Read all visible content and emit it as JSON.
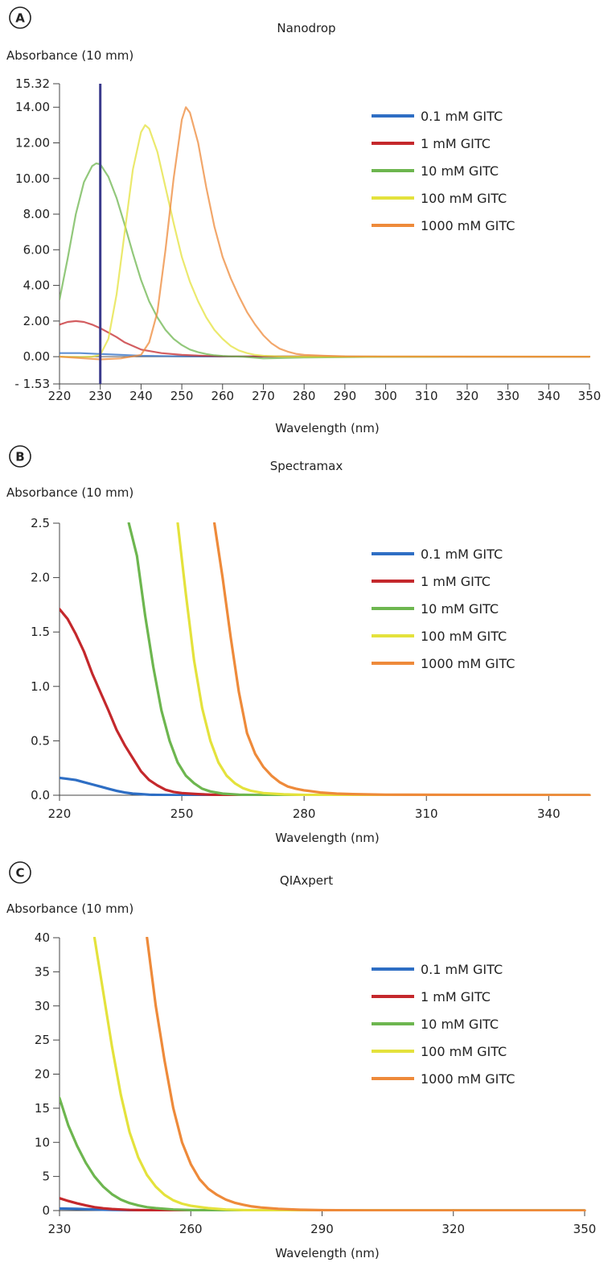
{
  "colors": {
    "0.1 mM GITC": "#2e6ec4",
    "1 mM GITC": "#c4282c",
    "10 mM GITC": "#6db64f",
    "100 mM GITC": "#e4e23c",
    "1000 mM GITC": "#ee8a3a",
    "marker": "#3b3b8c"
  },
  "chart_data": [
    {
      "panel": "A",
      "type": "line",
      "title": "Nanodrop",
      "ylabel": "Absorbance (10 mm)",
      "xlabel": "Wavelength (nm)",
      "xlim": [
        220,
        350
      ],
      "ylim": [
        -1.53,
        15.32
      ],
      "xticks": [
        "220",
        "230",
        "240",
        "250",
        "260",
        "270",
        "280",
        "290",
        "300",
        "310",
        "320",
        "330",
        "340",
        "350"
      ],
      "yticks": [
        "15.32",
        "14.00",
        "12.00",
        "10.00",
        "8.00",
        "6.00",
        "4.00",
        "2.00",
        "0.00",
        "- 1.53"
      ],
      "ytick_values": [
        15.32,
        14,
        12,
        10,
        8,
        6,
        4,
        2,
        0,
        -1.53
      ],
      "marker_line_x": 230,
      "legend": [
        "0.1 mM GITC",
        "1 mM GITC",
        "10 mM GITC",
        "100 mM GITC",
        "1000 mM GITC"
      ],
      "series": [
        {
          "name": "0.1 mM GITC",
          "x": [
            220,
            225,
            230,
            235,
            240,
            250,
            260,
            300,
            350
          ],
          "y": [
            0.2,
            0.2,
            0.15,
            0.1,
            0.05,
            0.02,
            0.01,
            0.0,
            0.0
          ]
        },
        {
          "name": "1 mM GITC",
          "x": [
            220,
            222,
            224,
            226,
            228,
            230,
            232,
            234,
            236,
            240,
            245,
            250,
            255,
            260,
            300,
            350
          ],
          "y": [
            1.8,
            1.95,
            2.0,
            1.95,
            1.8,
            1.6,
            1.35,
            1.1,
            0.8,
            0.4,
            0.2,
            0.1,
            0.05,
            0.02,
            0.0,
            0.0
          ]
        },
        {
          "name": "10 mM GITC",
          "x": [
            220,
            222,
            224,
            226,
            228,
            229,
            230,
            232,
            234,
            236,
            238,
            240,
            242,
            244,
            246,
            248,
            250,
            252,
            254,
            256,
            258,
            260,
            262,
            265,
            270,
            280,
            300,
            313
          ],
          "y": [
            3.2,
            5.5,
            8.0,
            9.8,
            10.7,
            10.85,
            10.8,
            10.1,
            8.9,
            7.4,
            5.8,
            4.3,
            3.1,
            2.2,
            1.5,
            1.0,
            0.65,
            0.4,
            0.25,
            0.15,
            0.08,
            0.04,
            0.02,
            0.0,
            -0.1,
            -0.05,
            0.0,
            0.0
          ]
        },
        {
          "name": "100 mM GITC",
          "x": [
            220,
            225,
            228,
            230,
            232,
            234,
            236,
            238,
            240,
            241,
            242,
            244,
            246,
            248,
            250,
            252,
            254,
            256,
            258,
            260,
            262,
            264,
            266,
            268,
            270,
            275,
            280,
            300,
            350
          ],
          "y": [
            0.0,
            -0.02,
            0.0,
            0.1,
            1.0,
            3.5,
            7.0,
            10.5,
            12.6,
            13.0,
            12.8,
            11.5,
            9.5,
            7.5,
            5.6,
            4.2,
            3.1,
            2.2,
            1.5,
            1.0,
            0.6,
            0.35,
            0.2,
            0.1,
            0.05,
            0.0,
            0.0,
            0.0,
            0.0
          ]
        },
        {
          "name": "1000 mM GITC",
          "x": [
            220,
            230,
            235,
            240,
            242,
            244,
            246,
            248,
            250,
            251,
            252,
            254,
            256,
            258,
            260,
            262,
            264,
            266,
            268,
            270,
            272,
            274,
            276,
            278,
            280,
            285,
            290,
            350
          ],
          "y": [
            0.0,
            -0.15,
            -0.1,
            0.1,
            0.8,
            2.5,
            6.0,
            10.0,
            13.3,
            14.0,
            13.7,
            12.0,
            9.5,
            7.3,
            5.6,
            4.4,
            3.4,
            2.5,
            1.8,
            1.2,
            0.75,
            0.45,
            0.28,
            0.16,
            0.1,
            0.05,
            0.02,
            0.0
          ]
        }
      ]
    },
    {
      "panel": "B",
      "type": "line",
      "title": "Spectramax",
      "ylabel": "Absorbance (10 mm)",
      "xlabel": "Wavelength (nm)",
      "xlim": [
        220,
        350
      ],
      "ylim": [
        0,
        2.5
      ],
      "xticks": [
        "220",
        "250",
        "280",
        "310",
        "340"
      ],
      "xtick_values": [
        220,
        250,
        280,
        310,
        340
      ],
      "yticks": [
        "2.5",
        "2.0",
        "1.5",
        "1.0",
        "0.5",
        "0.0"
      ],
      "ytick_values": [
        2.5,
        2.0,
        1.5,
        1.0,
        0.5,
        0.0
      ],
      "legend": [
        "0.1 mM GITC",
        "1 mM GITC",
        "10 mM GITC",
        "100 mM GITC",
        "1000 mM GITC"
      ],
      "series": [
        {
          "name": "0.1 mM GITC",
          "x": [
            220,
            222,
            224,
            226,
            228,
            230,
            232,
            234,
            236,
            238,
            240,
            242,
            244,
            246,
            250,
            260,
            350
          ],
          "y": [
            0.16,
            0.15,
            0.14,
            0.12,
            0.1,
            0.08,
            0.06,
            0.04,
            0.025,
            0.015,
            0.01,
            0.005,
            0.003,
            0.002,
            0.0,
            0.0,
            0.0
          ]
        },
        {
          "name": "1 mM GITC",
          "x": [
            220,
            222,
            224,
            226,
            228,
            230,
            232,
            234,
            236,
            238,
            240,
            242,
            244,
            246,
            248,
            250,
            254,
            260,
            270,
            350
          ],
          "y": [
            1.71,
            1.62,
            1.48,
            1.32,
            1.12,
            0.95,
            0.78,
            0.6,
            0.46,
            0.34,
            0.22,
            0.14,
            0.09,
            0.05,
            0.03,
            0.02,
            0.01,
            0.0,
            0.0,
            0.0
          ]
        },
        {
          "name": "10 mM GITC",
          "x": [
            237,
            239,
            241,
            243,
            245,
            247,
            249,
            251,
            253,
            255,
            257,
            260,
            264,
            270,
            350
          ],
          "y": [
            2.5,
            2.2,
            1.65,
            1.18,
            0.78,
            0.5,
            0.3,
            0.18,
            0.11,
            0.06,
            0.035,
            0.015,
            0.005,
            0.0,
            0.0
          ]
        },
        {
          "name": "100 mM GITC",
          "x": [
            249,
            251,
            253,
            255,
            257,
            259,
            261,
            263,
            265,
            267,
            270,
            275,
            280,
            350
          ],
          "y": [
            2.5,
            1.85,
            1.24,
            0.8,
            0.5,
            0.3,
            0.18,
            0.11,
            0.065,
            0.04,
            0.02,
            0.008,
            0.003,
            0.0
          ]
        },
        {
          "name": "1000 mM GITC",
          "x": [
            258,
            260,
            262,
            264,
            266,
            268,
            270,
            272,
            274,
            276,
            278,
            280,
            284,
            288,
            292,
            300,
            350
          ],
          "y": [
            2.5,
            2.0,
            1.45,
            0.95,
            0.57,
            0.38,
            0.26,
            0.18,
            0.12,
            0.08,
            0.06,
            0.045,
            0.025,
            0.015,
            0.01,
            0.005,
            0.0
          ]
        }
      ]
    },
    {
      "panel": "C",
      "type": "line",
      "title": "QIAxpert",
      "ylabel": "Absorbance (10 mm)",
      "xlabel": "Wavelength (nm)",
      "xlim": [
        230,
        350
      ],
      "ylim": [
        0,
        40
      ],
      "xticks": [
        "230",
        "260",
        "290",
        "320",
        "350"
      ],
      "xtick_values": [
        230,
        260,
        290,
        320,
        350
      ],
      "yticks": [
        "40",
        "35",
        "30",
        "25",
        "20",
        "15",
        "10",
        "5",
        "0"
      ],
      "ytick_values": [
        40,
        35,
        30,
        25,
        20,
        15,
        10,
        5,
        0
      ],
      "legend": [
        "0.1 mM GITC",
        "1 mM GITC",
        "10 mM GITC",
        "100 mM GITC",
        "1000 mM GITC"
      ],
      "series": [
        {
          "name": "0.1 mM GITC",
          "x": [
            230,
            234,
            238,
            242,
            250,
            260,
            350
          ],
          "y": [
            0.3,
            0.25,
            0.15,
            0.1,
            0.05,
            0.0,
            0.0
          ]
        },
        {
          "name": "1 mM GITC",
          "x": [
            230,
            232,
            234,
            236,
            238,
            240,
            242,
            244,
            246,
            248,
            250,
            254,
            260,
            350
          ],
          "y": [
            1.8,
            1.4,
            1.05,
            0.75,
            0.5,
            0.33,
            0.22,
            0.15,
            0.1,
            0.07,
            0.05,
            0.02,
            0.0,
            0.0
          ]
        },
        {
          "name": "10 mM GITC",
          "x": [
            230,
            232,
            234,
            236,
            238,
            240,
            242,
            244,
            246,
            248,
            250,
            252,
            254,
            256,
            260,
            265,
            270,
            350
          ],
          "y": [
            16.5,
            12.5,
            9.5,
            7.0,
            5.0,
            3.5,
            2.4,
            1.6,
            1.1,
            0.75,
            0.5,
            0.35,
            0.25,
            0.15,
            0.07,
            0.02,
            0.0,
            0.0
          ]
        },
        {
          "name": "100 mM GITC",
          "x": [
            238,
            240,
            242,
            244,
            246,
            248,
            250,
            252,
            254,
            256,
            258,
            260,
            264,
            268,
            272,
            280,
            350
          ],
          "y": [
            40,
            32,
            24,
            17,
            11.5,
            7.8,
            5.2,
            3.5,
            2.3,
            1.5,
            1.0,
            0.7,
            0.35,
            0.15,
            0.07,
            0.02,
            0.0
          ]
        },
        {
          "name": "1000 mM GITC",
          "x": [
            250,
            252,
            254,
            256,
            258,
            260,
            262,
            264,
            266,
            268,
            270,
            272,
            274,
            276,
            280,
            285,
            290,
            300,
            350
          ],
          "y": [
            40,
            30,
            22,
            15,
            10,
            6.8,
            4.6,
            3.2,
            2.3,
            1.6,
            1.15,
            0.85,
            0.6,
            0.45,
            0.25,
            0.12,
            0.06,
            0.02,
            0.0
          ]
        }
      ]
    }
  ]
}
